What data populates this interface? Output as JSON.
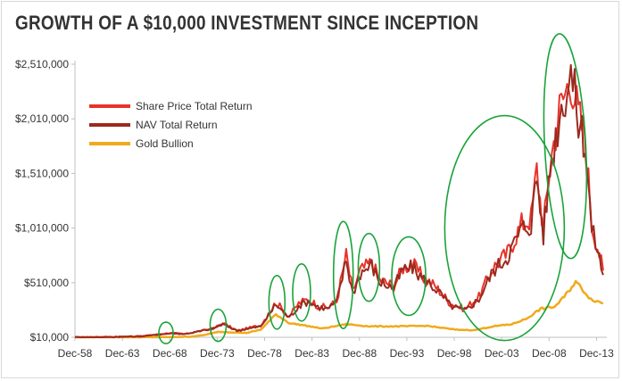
{
  "chart_data": {
    "type": "line",
    "title": "GROWTH OF A $10,000 INVESTMENT SINCE INCEPTION",
    "xlabel": "",
    "ylabel": "",
    "x_range": [
      1958.9,
      2014.8
    ],
    "ylim": [
      10000,
      2510000
    ],
    "y_ticks": [
      10000,
      510000,
      1010000,
      1510000,
      2010000,
      2510000
    ],
    "y_tick_labels": [
      "$10,000",
      "$510,000",
      "$1,010,000",
      "$1,510,000",
      "$2,010,000",
      "$2,510,000"
    ],
    "x_ticks": [
      1958.9,
      1963.9,
      1968.9,
      1973.9,
      1978.9,
      1983.9,
      1988.9,
      1993.9,
      1998.9,
      2003.9,
      2008.9,
      2013.9
    ],
    "x_tick_labels": [
      "Dec-58",
      "Dec-63",
      "Dec-68",
      "Dec-73",
      "Dec-78",
      "Dec-83",
      "Dec-88",
      "Dec-93",
      "Dec-98",
      "Dec-03",
      "Dec-08",
      "Dec-13"
    ],
    "legend_position": "top-left",
    "series": [
      {
        "name": "Share Price Total Return",
        "color": "#e8332a",
        "points": [
          [
            1958.9,
            10000
          ],
          [
            1962,
            12000
          ],
          [
            1966,
            20000
          ],
          [
            1968.9,
            50000
          ],
          [
            1970.5,
            40000
          ],
          [
            1973.5,
            90000
          ],
          [
            1974.5,
            140000
          ],
          [
            1976,
            70000
          ],
          [
            1978.5,
            120000
          ],
          [
            1980.1,
            330000
          ],
          [
            1981.5,
            200000
          ],
          [
            1982.5,
            320000
          ],
          [
            1983.5,
            360000
          ],
          [
            1984.5,
            300000
          ],
          [
            1985.5,
            280000
          ],
          [
            1986.5,
            340000
          ],
          [
            1987.5,
            760000
          ],
          [
            1988.2,
            430000
          ],
          [
            1989,
            620000
          ],
          [
            1990.2,
            700000
          ],
          [
            1991,
            540000
          ],
          [
            1992.5,
            480000
          ],
          [
            1993.5,
            650000
          ],
          [
            1994.5,
            680000
          ],
          [
            1995.5,
            570000
          ],
          [
            1997,
            470000
          ],
          [
            1998.5,
            320000
          ],
          [
            2000,
            270000
          ],
          [
            2001.5,
            380000
          ],
          [
            2003,
            650000
          ],
          [
            2004.5,
            780000
          ],
          [
            2006,
            1050000
          ],
          [
            2007,
            1100000
          ],
          [
            2007.6,
            1550000
          ],
          [
            2008.3,
            1000000
          ],
          [
            2009,
            1600000
          ],
          [
            2010,
            2100000
          ],
          [
            2011.2,
            2400000
          ],
          [
            2012,
            2050000
          ],
          [
            2012.7,
            1850000
          ],
          [
            2013.4,
            1050000
          ],
          [
            2014,
            850000
          ],
          [
            2014.6,
            620000
          ]
        ]
      },
      {
        "name": "NAV Total Return",
        "color": "#9b2a1e",
        "points": [
          [
            1958.9,
            10000
          ],
          [
            1962,
            12000
          ],
          [
            1966,
            20000
          ],
          [
            1968.9,
            45000
          ],
          [
            1970.5,
            40000
          ],
          [
            1973.5,
            90000
          ],
          [
            1974.5,
            130000
          ],
          [
            1976,
            70000
          ],
          [
            1978.5,
            110000
          ],
          [
            1980.1,
            310000
          ],
          [
            1981.5,
            190000
          ],
          [
            1982.5,
            300000
          ],
          [
            1983.5,
            340000
          ],
          [
            1984.5,
            290000
          ],
          [
            1985.5,
            270000
          ],
          [
            1986.5,
            330000
          ],
          [
            1987.5,
            720000
          ],
          [
            1988.2,
            410000
          ],
          [
            1989,
            600000
          ],
          [
            1990.2,
            670000
          ],
          [
            1991,
            520000
          ],
          [
            1992.5,
            460000
          ],
          [
            1993.5,
            630000
          ],
          [
            1994.5,
            650000
          ],
          [
            1995.5,
            550000
          ],
          [
            1997,
            450000
          ],
          [
            1998.5,
            300000
          ],
          [
            2000,
            250000
          ],
          [
            2001.5,
            360000
          ],
          [
            2003,
            620000
          ],
          [
            2004.5,
            750000
          ],
          [
            2006,
            1000000
          ],
          [
            2007,
            1050000
          ],
          [
            2007.6,
            1480000
          ],
          [
            2008.3,
            950000
          ],
          [
            2009,
            1550000
          ],
          [
            2010,
            2050000
          ],
          [
            2011.2,
            2450000
          ],
          [
            2012,
            2000000
          ],
          [
            2012.7,
            1800000
          ],
          [
            2013.4,
            1000000
          ],
          [
            2014,
            820000
          ],
          [
            2014.6,
            580000
          ]
        ]
      },
      {
        "name": "Gold Bullion",
        "color": "#f0aa1c",
        "points": [
          [
            1958.9,
            10000
          ],
          [
            1968,
            11000
          ],
          [
            1971,
            15000
          ],
          [
            1972.5,
            30000
          ],
          [
            1974,
            60000
          ],
          [
            1975.5,
            55000
          ],
          [
            1977,
            50000
          ],
          [
            1978.5,
            80000
          ],
          [
            1980.1,
            220000
          ],
          [
            1981.5,
            140000
          ],
          [
            1983,
            120000
          ],
          [
            1985,
            90000
          ],
          [
            1987.5,
            130000
          ],
          [
            1990,
            110000
          ],
          [
            1993,
            110000
          ],
          [
            1996,
            115000
          ],
          [
            1999,
            80000
          ],
          [
            2001,
            75000
          ],
          [
            2003,
            110000
          ],
          [
            2005,
            130000
          ],
          [
            2006.5,
            180000
          ],
          [
            2008,
            270000
          ],
          [
            2009.5,
            290000
          ],
          [
            2010.5,
            380000
          ],
          [
            2011.7,
            520000
          ],
          [
            2012.5,
            440000
          ],
          [
            2013.3,
            360000
          ],
          [
            2014.6,
            320000
          ]
        ]
      }
    ]
  },
  "annotations": {
    "kind": "highlight ellipses",
    "color": "#1aa33a",
    "centers": [
      {
        "x": 1968.5,
        "y": 50000
      },
      {
        "x": 1974.0,
        "y": 120000
      },
      {
        "x": 1980.2,
        "y": 330000
      },
      {
        "x": 1982.8,
        "y": 420000
      },
      {
        "x": 1987.2,
        "y": 580000
      },
      {
        "x": 1989.9,
        "y": 650000
      },
      {
        "x": 1994.1,
        "y": 570000
      },
      {
        "x": 2004.2,
        "y": 1010000
      },
      {
        "x": 2010.6,
        "y": 1760000
      }
    ]
  }
}
